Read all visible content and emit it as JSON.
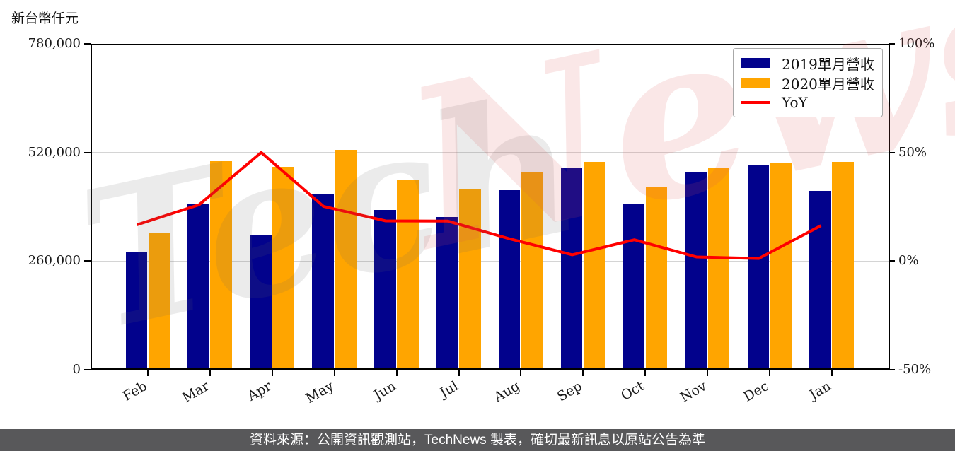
{
  "axis_title": "新台幣仟元",
  "watermark": {
    "part1": "Tech",
    "part2": "News",
    "gray_color": "rgba(100,100,100,0.13)",
    "pink_color": "rgba(222,85,85,0.14)"
  },
  "footer": {
    "text": "資料來源：公開資訊觀測站，TechNews 製表，確切最新訊息以原站公告為準",
    "background": "#58585A"
  },
  "chart_data": {
    "type": "bar",
    "categories": [
      "Feb",
      "Mar",
      "Apr",
      "May",
      "Jun",
      "Jul",
      "Aug",
      "Sep",
      "Oct",
      "Nov",
      "Dec",
      "Jan"
    ],
    "series": [
      {
        "name": "2019單月營收",
        "type": "bar",
        "axis": "left",
        "color": "#02028C",
        "values": [
          281000,
          397000,
          324000,
          420000,
          383000,
          365000,
          430000,
          484000,
          397000,
          474000,
          489000,
          428000
        ]
      },
      {
        "name": "2020單月營收",
        "type": "bar",
        "axis": "left",
        "color": "#FFA500",
        "values": [
          328000,
          500000,
          486000,
          526000,
          454000,
          432000,
          474000,
          498000,
          436000,
          483000,
          495000,
          498000
        ]
      },
      {
        "name": "YoY",
        "type": "line",
        "axis": "right",
        "unit": "%",
        "color": "#FF0000",
        "values": [
          16.7,
          25.9,
          50.0,
          25.2,
          18.5,
          18.4,
          10.2,
          2.9,
          9.8,
          1.9,
          1.2,
          16.3
        ]
      }
    ],
    "left_axis": {
      "title": "新台幣仟元",
      "min": 0,
      "max": 780000,
      "ticks": [
        {
          "value": 780000,
          "label": "780,000"
        },
        {
          "value": 520000,
          "label": "520,000"
        },
        {
          "value": 260000,
          "label": "260,000"
        },
        {
          "value": 0,
          "label": "0"
        }
      ]
    },
    "right_axis": {
      "min": -50,
      "max": 100,
      "ticks": [
        {
          "value": 100,
          "label": "100%"
        },
        {
          "value": 50,
          "label": "50%"
        },
        {
          "value": 0,
          "label": "0%"
        },
        {
          "value": -50,
          "label": "-50%"
        }
      ]
    },
    "gridlines": [
      520000,
      260000
    ],
    "legend_position": "top-right",
    "grid": "horizontal"
  }
}
